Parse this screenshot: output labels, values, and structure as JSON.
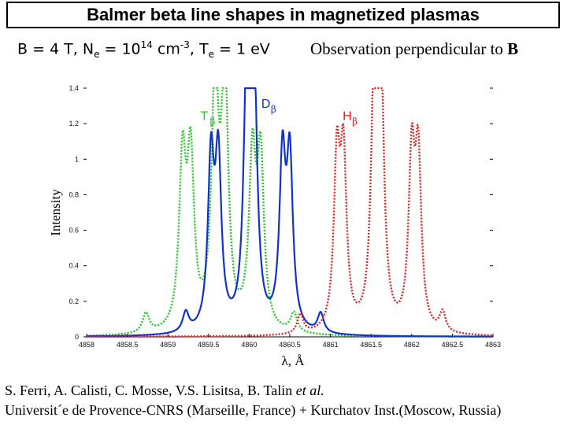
{
  "header": {
    "title": "Balmer beta line shapes in magnetized plasmas",
    "params": {
      "b": "B = 4 T, N",
      "ne_sub": "e",
      "eq1": " = 10",
      "ne_exp": "14",
      "unit": " cm",
      "unit_exp": "-3",
      "te": ", T",
      "te_sub": "e",
      "te_val": " = 1 eV"
    },
    "observation_prefix": "Observation perpendicular   to ",
    "observation_bold": "B"
  },
  "credits": {
    "line1_main": "S. Ferri, A. Calisti, C. Mosse, V.S. Lisitsa, B. Talin ",
    "line1_italic": "et al.",
    "line2": "Universit´e de Provence-CNRS (Marseille, France) + Kurchatov Inst.(Moscow, Russia)"
  },
  "chart_data": {
    "type": "line",
    "xlabel": "λ, Å",
    "ylabel": "Intensity",
    "xlim": [
      4858,
      4863
    ],
    "ylim": [
      0,
      1.4
    ],
    "x_ticks": [
      "4858",
      "4858.5",
      "4859",
      "4859.5",
      "4860",
      "4860.5",
      "4861",
      "4861.5",
      "4862",
      "4862.5",
      "4863"
    ],
    "y_ticks": [
      "0",
      "0.2",
      "0.4",
      "0.6",
      "0.8",
      "1",
      "1.2",
      "1.4"
    ],
    "grid": false,
    "series": [
      {
        "name": "T",
        "label_main": "T",
        "label_sub": "β",
        "color": "#22cc22",
        "style": "dotted",
        "label_pos": [
          4859.4,
          1.22
        ],
        "components": [
          {
            "center": 4859.18,
            "amp": 0.93,
            "width": 0.05
          },
          {
            "center": 4859.28,
            "amp": 0.93,
            "width": 0.05
          },
          {
            "center": 4859.58,
            "amp": 1.4,
            "width": 0.05
          },
          {
            "center": 4859.7,
            "amp": 1.4,
            "width": 0.05
          },
          {
            "center": 4860.04,
            "amp": 0.93,
            "width": 0.05
          },
          {
            "center": 4860.14,
            "amp": 0.93,
            "width": 0.05
          },
          {
            "center": 4858.73,
            "amp": 0.11,
            "width": 0.05
          },
          {
            "center": 4860.55,
            "amp": 0.11,
            "width": 0.05
          }
        ]
      },
      {
        "name": "D",
        "label_main": "D",
        "label_sub": "β",
        "color": "#1133cc",
        "style": "solid",
        "label_pos": [
          4860.15,
          1.29
        ],
        "components": [
          {
            "center": 4859.53,
            "amp": 0.93,
            "width": 0.045
          },
          {
            "center": 4859.62,
            "amp": 0.93,
            "width": 0.045
          },
          {
            "center": 4859.97,
            "amp": 1.4,
            "width": 0.045
          },
          {
            "center": 4860.06,
            "amp": 1.4,
            "width": 0.045
          },
          {
            "center": 4860.41,
            "amp": 0.93,
            "width": 0.045
          },
          {
            "center": 4860.5,
            "amp": 0.93,
            "width": 0.045
          },
          {
            "center": 4859.22,
            "amp": 0.11,
            "width": 0.045
          },
          {
            "center": 4860.88,
            "amp": 0.11,
            "width": 0.045
          }
        ]
      },
      {
        "name": "H",
        "label_main": "H",
        "label_sub": "β",
        "color": "#dd2222",
        "style": "dotted",
        "label_pos": [
          4861.15,
          1.22
        ],
        "components": [
          {
            "center": 4861.08,
            "amp": 0.93,
            "width": 0.045
          },
          {
            "center": 4861.16,
            "amp": 0.93,
            "width": 0.045
          },
          {
            "center": 4861.54,
            "amp": 1.4,
            "width": 0.045
          },
          {
            "center": 4861.62,
            "amp": 1.4,
            "width": 0.045
          },
          {
            "center": 4862.0,
            "amp": 0.93,
            "width": 0.045
          },
          {
            "center": 4862.08,
            "amp": 0.93,
            "width": 0.045
          },
          {
            "center": 4860.63,
            "amp": 0.11,
            "width": 0.045
          },
          {
            "center": 4862.38,
            "amp": 0.11,
            "width": 0.045
          }
        ]
      }
    ]
  }
}
